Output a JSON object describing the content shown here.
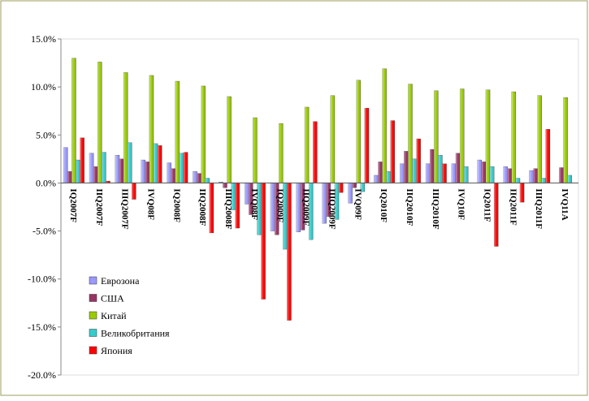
{
  "chart_data": {
    "type": "bar",
    "categories": [
      "IQ2007F",
      "IIQ2007F",
      "IIIQ2007F",
      "IVQ08F",
      "IQ2008F",
      "IIQ2008F",
      "IIIQ2008F",
      "IVQ08F",
      "IQ2009F",
      "IIQ2009F",
      "IIIQ2009F",
      "IVQ09F",
      "IQ2010F",
      "IIQ2010F",
      "IIIQ2010F",
      "IVQ10F",
      "IQ2011F",
      "IIQ2011F",
      "IIIQ2011F",
      "IVQ11A"
    ],
    "series": [
      {
        "name": "Еврозона",
        "color": "#9999ff",
        "values": [
          3.7,
          3.1,
          2.9,
          2.4,
          2.1,
          1.2,
          0.1,
          -2.2,
          -5.0,
          -5.1,
          -4.2,
          -2.1,
          0.8,
          2.0,
          2.0,
          2.0,
          2.4,
          1.7,
          1.3,
          null
        ]
      },
      {
        "name": "США",
        "color": "#993366",
        "values": [
          1.2,
          1.7,
          2.5,
          2.2,
          1.5,
          1.0,
          -0.5,
          -3.3,
          -5.4,
          -4.9,
          -3.5,
          -0.5,
          2.2,
          3.3,
          3.5,
          3.1,
          2.2,
          1.5,
          1.5,
          1.6
        ]
      },
      {
        "name": "Китай",
        "color": "#99cc00",
        "values": [
          13.0,
          12.6,
          11.5,
          11.2,
          10.6,
          10.1,
          9.0,
          6.8,
          6.2,
          7.9,
          9.1,
          10.7,
          11.9,
          10.3,
          9.6,
          9.8,
          9.7,
          9.5,
          9.1,
          8.9
        ]
      },
      {
        "name": "Великобритания",
        "color": "#33cccc",
        "values": [
          2.4,
          3.2,
          4.2,
          4.1,
          3.1,
          0.5,
          -2.8,
          -5.4,
          -6.9,
          -5.9,
          -3.8,
          -0.9,
          1.2,
          2.5,
          2.9,
          1.7,
          1.7,
          0.5,
          0.5,
          0.8
        ]
      },
      {
        "name": "Япония",
        "color": "#ff0000",
        "values": [
          4.7,
          0.2,
          -1.7,
          3.9,
          3.2,
          -5.2,
          -4.7,
          -12.1,
          -14.3,
          6.4,
          -1.0,
          7.8,
          6.5,
          4.6,
          2.0,
          0.0,
          -6.6,
          -2.0,
          5.6,
          null
        ]
      }
    ],
    "ylim": [
      -20,
      15
    ],
    "yticks": [
      {
        "value": -20,
        "label": "-20.0%"
      },
      {
        "value": -15,
        "label": "-15.0%"
      },
      {
        "value": -10,
        "label": "-10.0%"
      },
      {
        "value": -5,
        "label": "-5.0%"
      },
      {
        "value": 0,
        "label": "0.0%"
      },
      {
        "value": 5,
        "label": "5.0%"
      },
      {
        "value": 10,
        "label": "10.0%"
      },
      {
        "value": 15,
        "label": "15.0%"
      }
    ]
  }
}
